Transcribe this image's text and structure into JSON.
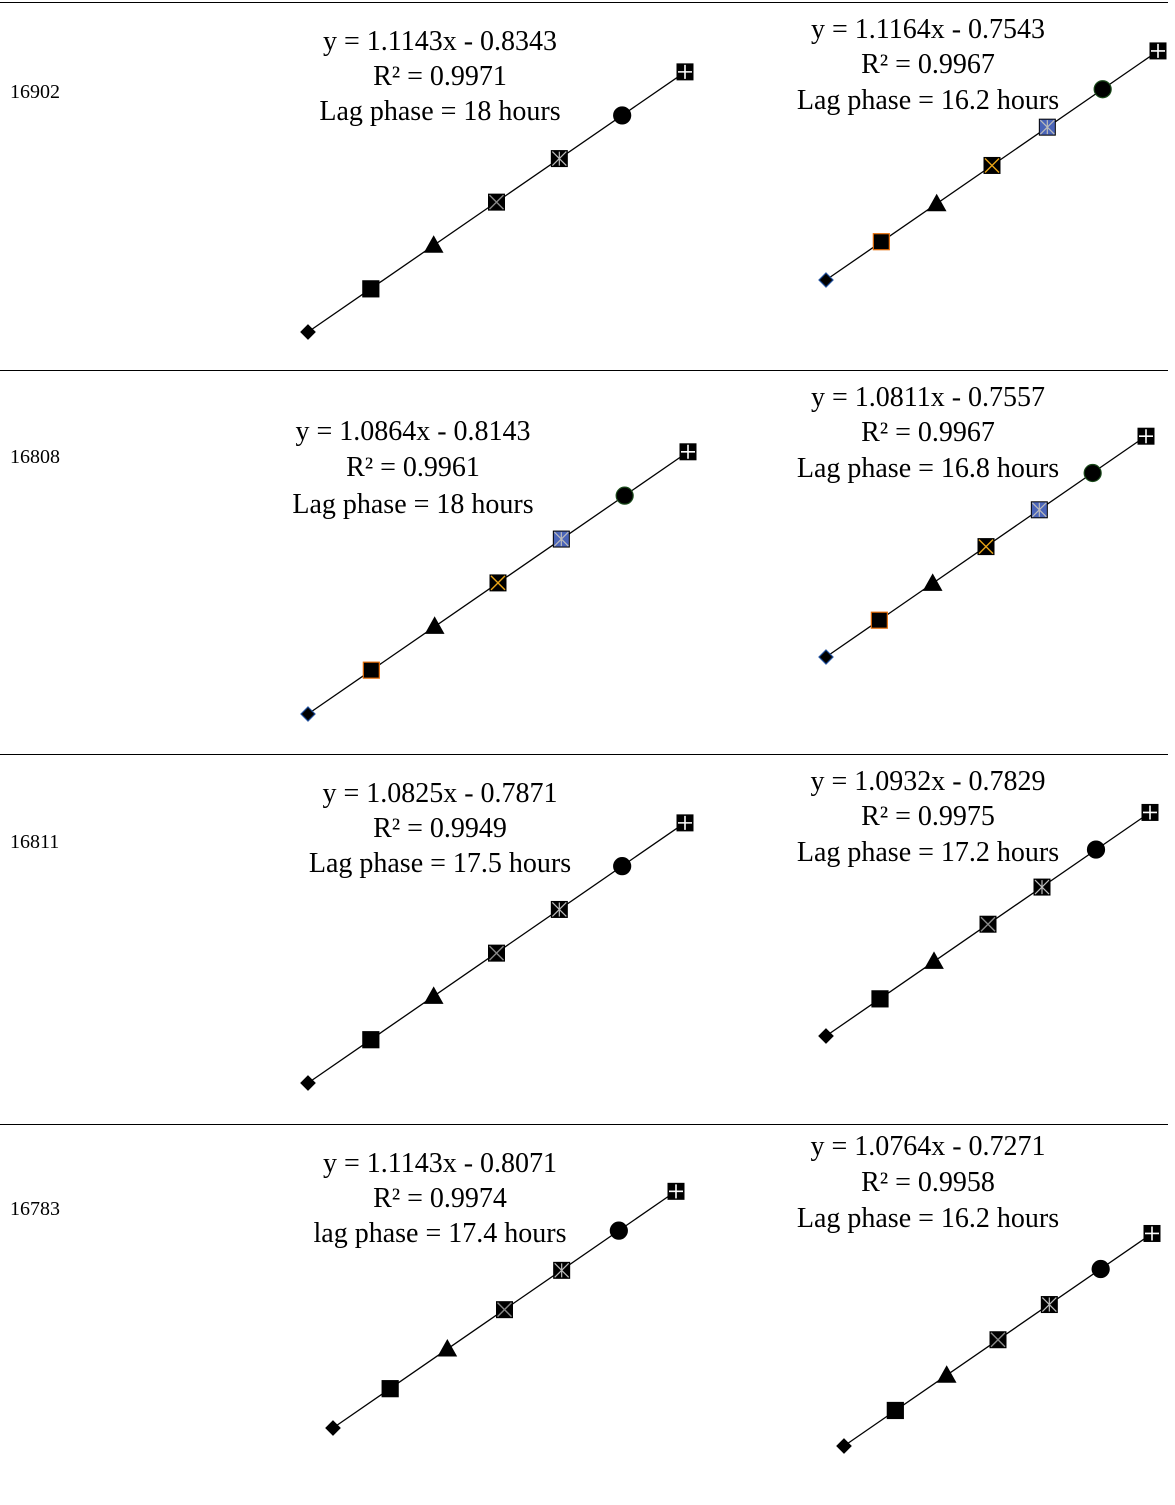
{
  "rows": [
    {
      "label": "16902",
      "panels": [
        {
          "equation": "y = 1.1143x - 0.8343",
          "r2": "R² = 0.9971",
          "lag": "Lag  phase = 18 hours"
        },
        {
          "equation": "y = 1.1164x - 0.7543",
          "r2": "R² = 0.9967",
          "lag": "Lag phase = 16.2 hours"
        }
      ]
    },
    {
      "label": "16808",
      "panels": [
        {
          "equation": "y = 1.0864x - 0.8143",
          "r2": "R² = 0.9961",
          "lag": "Lag  phase = 18 hours"
        },
        {
          "equation": "y = 1.0811x - 0.7557",
          "r2": "R² = 0.9967",
          "lag": "Lag phase = 16.8 hours"
        }
      ]
    },
    {
      "label": "16811",
      "panels": [
        {
          "equation": "y = 1.0825x - 0.7871",
          "r2": "R² = 0.9949",
          "lag": "Lag phase = 17.5 hours"
        },
        {
          "equation": "y = 1.0932x - 0.7829",
          "r2": "R² = 0.9975",
          "lag": "Lag  phase = 17.2 hours"
        }
      ]
    },
    {
      "label": "16783",
      "panels": [
        {
          "equation": "y = 1.1143x - 0.8071",
          "r2": "R² = 0.9974",
          "lag": "lag phase = 17.4 hours"
        },
        {
          "equation": "y = 1.0764x - 0.7271",
          "r2": "R² = 0.9958",
          "lag": "Lag  phase = 16.2 hours"
        }
      ]
    }
  ],
  "chart_data": {
    "type": "scatter",
    "axes_visible": false,
    "gridlines": false,
    "marker_sequence": [
      "diamond",
      "square",
      "triangle",
      "x-square",
      "star-square",
      "circle",
      "plus-square"
    ],
    "panels": [
      {
        "row": "16902",
        "slope": 1.1143,
        "intercept": -0.8343,
        "r2": 0.9971,
        "lag_hours": 18,
        "points": [
          [
            1,
            0.28
          ],
          [
            2,
            1.39
          ],
          [
            3,
            2.51
          ],
          [
            4,
            3.62
          ],
          [
            5,
            4.74
          ],
          [
            6,
            5.85
          ],
          [
            7,
            6.97
          ]
        ]
      },
      {
        "row": "16902",
        "slope": 1.1164,
        "intercept": -0.7543,
        "r2": 0.9967,
        "lag_hours": 16.2,
        "points": [
          [
            1,
            0.36
          ],
          [
            2,
            1.48
          ],
          [
            3,
            2.59
          ],
          [
            4,
            3.71
          ],
          [
            5,
            4.83
          ],
          [
            6,
            5.94
          ],
          [
            7,
            7.06
          ]
        ],
        "marker_colors": [
          "#1f4e9a",
          "#e36c09",
          "#000000",
          "#e8a417",
          "#4a64b8",
          "#1a4a1a",
          "#000000"
        ]
      },
      {
        "row": "16808",
        "slope": 1.0864,
        "intercept": -0.8143,
        "r2": 0.9961,
        "lag_hours": 18,
        "points": [
          [
            1,
            0.27
          ],
          [
            2,
            1.36
          ],
          [
            3,
            2.45
          ],
          [
            4,
            3.53
          ],
          [
            5,
            4.62
          ],
          [
            6,
            5.7
          ],
          [
            7,
            6.79
          ]
        ],
        "marker_colors": [
          "#1f4e9a",
          "#e36c09",
          "#000000",
          "#e8a417",
          "#4a64b8",
          "#1a4a1a",
          "#000000"
        ]
      },
      {
        "row": "16808",
        "slope": 1.0811,
        "intercept": -0.7557,
        "r2": 0.9967,
        "lag_hours": 16.8,
        "points": [
          [
            1,
            0.33
          ],
          [
            2,
            1.41
          ],
          [
            3,
            2.49
          ],
          [
            4,
            3.57
          ],
          [
            5,
            4.65
          ],
          [
            6,
            5.73
          ],
          [
            7,
            6.81
          ]
        ],
        "marker_colors": [
          "#1f4e9a",
          "#e36c09",
          "#000000",
          "#e8a417",
          "#4a64b8",
          "#1a4a1a",
          "#000000"
        ]
      },
      {
        "row": "16811",
        "slope": 1.0825,
        "intercept": -0.7871,
        "r2": 0.9949,
        "lag_hours": 17.5,
        "points": [
          [
            1,
            0.3
          ],
          [
            2,
            1.38
          ],
          [
            3,
            2.46
          ],
          [
            4,
            3.54
          ],
          [
            5,
            4.63
          ],
          [
            6,
            5.71
          ],
          [
            7,
            6.79
          ]
        ]
      },
      {
        "row": "16811",
        "slope": 1.0932,
        "intercept": -0.7829,
        "r2": 0.9975,
        "lag_hours": 17.2,
        "points": [
          [
            1,
            0.31
          ],
          [
            2,
            1.4
          ],
          [
            3,
            2.5
          ],
          [
            4,
            3.59
          ],
          [
            5,
            4.68
          ],
          [
            6,
            5.78
          ],
          [
            7,
            6.87
          ]
        ]
      },
      {
        "row": "16783",
        "slope": 1.1143,
        "intercept": -0.8071,
        "r2": 0.9974,
        "lag_hours": 17.4,
        "points": [
          [
            1,
            0.31
          ],
          [
            2,
            1.42
          ],
          [
            3,
            2.54
          ],
          [
            4,
            3.65
          ],
          [
            5,
            4.76
          ],
          [
            6,
            5.88
          ],
          [
            7,
            6.99
          ]
        ]
      },
      {
        "row": "16783",
        "slope": 1.0764,
        "intercept": -0.7271,
        "r2": 0.9958,
        "lag_hours": 16.2,
        "points": [
          [
            1,
            0.35
          ],
          [
            2,
            1.43
          ],
          [
            3,
            2.5
          ],
          [
            4,
            3.58
          ],
          [
            5,
            4.65
          ],
          [
            6,
            5.73
          ],
          [
            7,
            6.81
          ]
        ]
      }
    ]
  }
}
